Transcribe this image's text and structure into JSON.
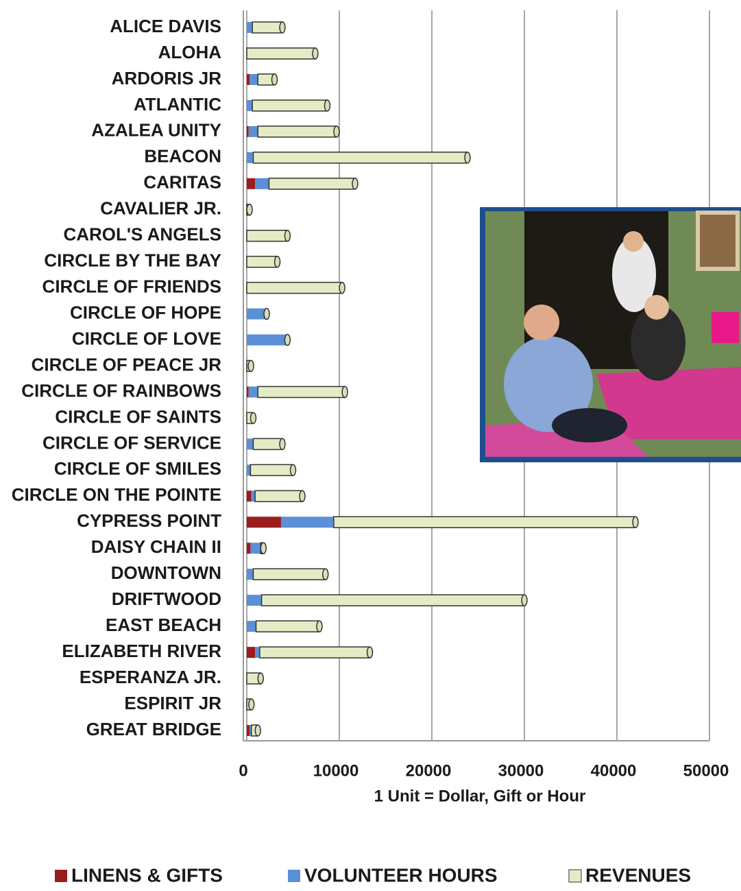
{
  "chart_data": {
    "type": "stacked-bar-horizontal",
    "x_axis_label": "1 Unit = Dollar, Gift or Hour",
    "categories": [
      "ALICE DAVIS",
      "ALOHA",
      "ARDORIS  JR",
      "ATLANTIC",
      "AZALEA UNITY",
      "BEACON",
      "CARITAS",
      "CAVALIER JR.",
      "CAROL'S ANGELS",
      "CIRCLE BY THE BAY",
      "CIRCLE OF FRIENDS",
      "CIRCLE OF HOPE",
      "CIRCLE OF LOVE",
      "CIRCLE OF PEACE JR",
      "CIRCLE OF RAINBOWS",
      "CIRCLE OF SAINTS",
      "CIRCLE OF SERVICE",
      "CIRCLE OF SMILES",
      "CIRCLE ON THE POINTE",
      "CYPRESS POINT",
      "DAISY CHAIN II",
      "DOWNTOWN",
      "DRIFTWOOD",
      "EAST BEACH",
      "ELIZABETH RIVER",
      "ESPERANZA JR.",
      "ESPIRIT JR",
      "GREAT BRIDGE"
    ],
    "series": [
      {
        "name": "LINENS & GIFTS",
        "color": "#9b1c1c",
        "values": [
          0,
          0,
          300,
          0,
          200,
          0,
          900,
          0,
          0,
          0,
          0,
          0,
          0,
          0,
          200,
          0,
          0,
          0,
          500,
          3700,
          400,
          0,
          0,
          0,
          900,
          0,
          0,
          300
        ]
      },
      {
        "name": "VOLUNTEER HOURS",
        "color": "#5b8fd6",
        "values": [
          600,
          0,
          900,
          600,
          1000,
          700,
          1500,
          0,
          0,
          0,
          0,
          2150,
          4400,
          0,
          1000,
          0,
          700,
          400,
          400,
          5700,
          1100,
          700,
          1600,
          1000,
          500,
          0,
          0,
          200
        ]
      },
      {
        "name": "REVENUES",
        "color": "#e3ecc4",
        "values": [
          3250,
          7400,
          1800,
          8100,
          8500,
          23150,
          9300,
          300,
          4400,
          3300,
          10300,
          0,
          0,
          450,
          9400,
          700,
          3150,
          4600,
          5100,
          32600,
          300,
          7800,
          28400,
          6850,
          11900,
          1500,
          500,
          700
        ]
      }
    ],
    "xlim": [
      0,
      50000
    ],
    "xticks": [
      0,
      10000,
      20000,
      30000,
      40000,
      50000
    ],
    "grid": true,
    "legend": "bottom"
  }
}
